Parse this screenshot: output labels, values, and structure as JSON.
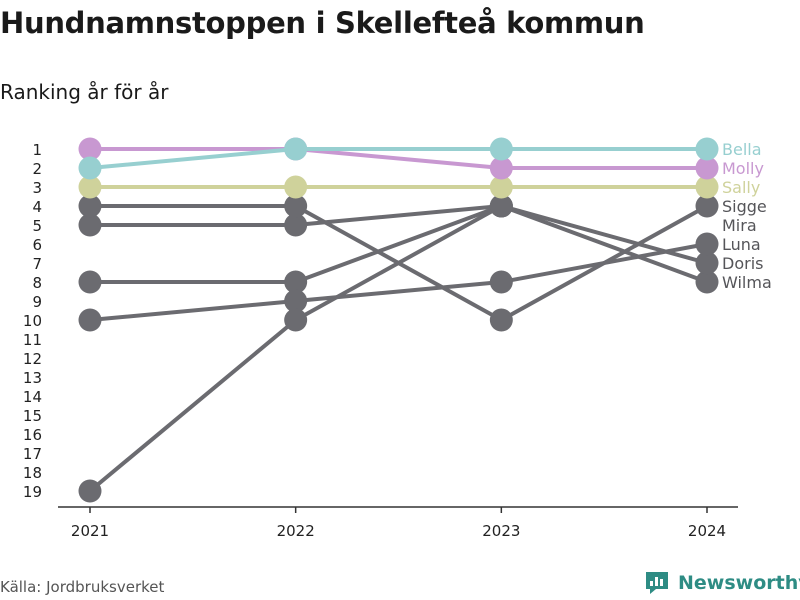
{
  "title": "Hundnamnstoppen i Skellefteå kommun",
  "subtitle": "Ranking år för år",
  "source": "Källa: Jordbruksverket",
  "brand": {
    "name": "Newsworthy",
    "icon": "newsworthy-logo-icon"
  },
  "colors": {
    "Bella": "#97cfd0",
    "Molly": "#c898d1",
    "Sally": "#cfd29b",
    "default": "#6b6b70",
    "axis": "#333333",
    "text": "#222222"
  },
  "chart_data": {
    "type": "line",
    "x": [
      2021,
      2022,
      2023,
      2024
    ],
    "x_tick_labels": [
      "2021",
      "2022",
      "2023",
      "2024"
    ],
    "y_tick_labels": [
      "1",
      "2",
      "3",
      "4",
      "5",
      "6",
      "7",
      "8",
      "9",
      "10",
      "11",
      "12",
      "13",
      "14",
      "15",
      "16",
      "17",
      "18",
      "19"
    ],
    "ylim": [
      1,
      19
    ],
    "y_reversed": true,
    "xlabel": "",
    "ylabel": "",
    "grid": false,
    "legend": "direct labels at right end of lines",
    "series": [
      {
        "name": "Wilma",
        "values": [
          8,
          8,
          4,
          8
        ]
      },
      {
        "name": "Doris",
        "values": [
          5,
          5,
          4,
          7
        ]
      },
      {
        "name": "Luna",
        "values": [
          10,
          9,
          8,
          6
        ]
      },
      {
        "name": "Mira",
        "values": [
          19,
          10,
          4,
          null
        ]
      },
      {
        "name": "Sigge",
        "values": [
          4,
          4,
          10,
          4
        ]
      },
      {
        "name": "Sally",
        "values": [
          3,
          3,
          3,
          3
        ]
      },
      {
        "name": "Molly",
        "values": [
          1,
          1,
          2,
          2
        ]
      },
      {
        "name": "Bella",
        "values": [
          2,
          1,
          1,
          1
        ]
      }
    ]
  }
}
